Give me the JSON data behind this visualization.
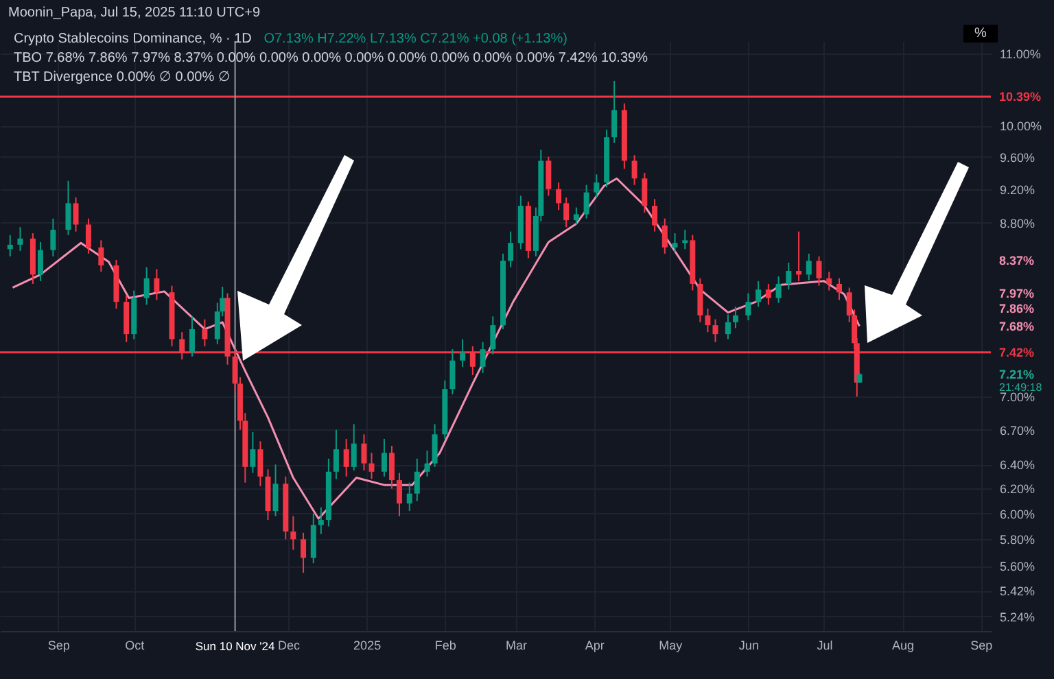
{
  "chart_data": {
    "type": "candlestick",
    "title": "Crypto Stablecoins Dominance, % · 1D",
    "subtitle": "O7.13% H7.22% L7.13% C7.21% +0.08 (+1.13%)",
    "ylabel": "%",
    "x": [
      "2024-08-13",
      "2024-08-17",
      "2024-08-22",
      "2024-08-25",
      "2024-08-30",
      "2024-09-05",
      "2024-09-08",
      "2024-09-13",
      "2024-09-18",
      "2024-09-24",
      "2024-09-28",
      "2024-10-01",
      "2024-10-06",
      "2024-10-10",
      "2024-10-16",
      "2024-10-20",
      "2024-10-24",
      "2024-10-29",
      "2024-11-03",
      "2024-11-05",
      "2024-11-07",
      "2024-11-10",
      "2024-11-12",
      "2024-11-14",
      "2024-11-17",
      "2024-11-20",
      "2024-11-23",
      "2024-11-26",
      "2024-11-30",
      "2024-12-03",
      "2024-12-07",
      "2024-12-11",
      "2024-12-14",
      "2024-12-17",
      "2024-12-20",
      "2024-12-24",
      "2024-12-27",
      "2024-12-31",
      "2025-01-03",
      "2025-01-08",
      "2025-01-11",
      "2025-01-14",
      "2025-01-18",
      "2025-01-21",
      "2025-01-25",
      "2025-01-28",
      "2025-02-01",
      "2025-02-04",
      "2025-02-08",
      "2025-02-12",
      "2025-02-16",
      "2025-02-20",
      "2025-02-24",
      "2025-02-27",
      "2025-03-03",
      "2025-03-06",
      "2025-03-09",
      "2025-03-11",
      "2025-03-14",
      "2025-03-18",
      "2025-03-21",
      "2025-03-25",
      "2025-03-29",
      "2025-04-02",
      "2025-04-06",
      "2025-04-09",
      "2025-04-13",
      "2025-04-17",
      "2025-04-21",
      "2025-04-25",
      "2025-04-29",
      "2025-05-03",
      "2025-05-07",
      "2025-05-10",
      "2025-05-13",
      "2025-05-16",
      "2025-05-19",
      "2025-05-24",
      "2025-05-27",
      "2025-06-01",
      "2025-06-05",
      "2025-06-09",
      "2025-06-13",
      "2025-06-17",
      "2025-06-21",
      "2025-06-25",
      "2025-06-29",
      "2025-07-03",
      "2025-07-07",
      "2025-07-11",
      "2025-07-13",
      "2025-07-14",
      "2025-07-15"
    ],
    "ohlc": [
      [
        8.5,
        8.66,
        8.42,
        8.55
      ],
      [
        8.55,
        8.75,
        8.48,
        8.62
      ],
      [
        8.62,
        8.68,
        8.12,
        8.22
      ],
      [
        8.22,
        8.58,
        8.15,
        8.49
      ],
      [
        8.49,
        8.85,
        8.42,
        8.72
      ],
      [
        8.72,
        9.3,
        8.66,
        9.03
      ],
      [
        9.03,
        9.1,
        8.7,
        8.78
      ],
      [
        8.78,
        8.85,
        8.45,
        8.52
      ],
      [
        8.52,
        8.6,
        8.25,
        8.32
      ],
      [
        8.32,
        8.38,
        7.86,
        7.93
      ],
      [
        7.93,
        8.0,
        7.52,
        7.6
      ],
      [
        7.6,
        8.05,
        7.55,
        7.97
      ],
      [
        7.97,
        8.3,
        7.9,
        8.18
      ],
      [
        8.18,
        8.28,
        7.95,
        8.03
      ],
      [
        8.03,
        8.1,
        7.48,
        7.55
      ],
      [
        7.55,
        7.62,
        7.35,
        7.42
      ],
      [
        7.42,
        7.78,
        7.38,
        7.65
      ],
      [
        7.65,
        7.75,
        7.48,
        7.55
      ],
      [
        7.55,
        7.92,
        7.5,
        7.83
      ],
      [
        7.83,
        8.09,
        7.78,
        7.97
      ],
      [
        7.97,
        8.02,
        7.3,
        7.38
      ],
      [
        7.38,
        7.45,
        7.05,
        7.12
      ],
      [
        7.12,
        7.18,
        6.7,
        6.78
      ],
      [
        6.78,
        6.85,
        6.25,
        6.38
      ],
      [
        6.38,
        6.68,
        6.33,
        6.53
      ],
      [
        6.53,
        6.6,
        6.22,
        6.3
      ],
      [
        6.3,
        6.36,
        5.95,
        6.02
      ],
      [
        6.02,
        6.4,
        5.98,
        6.24
      ],
      [
        6.24,
        6.3,
        5.8,
        5.86
      ],
      [
        5.86,
        5.98,
        5.72,
        5.8
      ],
      [
        5.8,
        5.85,
        5.55,
        5.66
      ],
      [
        5.66,
        6.0,
        5.62,
        5.91
      ],
      [
        5.91,
        6.05,
        5.84,
        5.95
      ],
      [
        5.95,
        6.45,
        5.9,
        6.34
      ],
      [
        6.34,
        6.7,
        6.28,
        6.53
      ],
      [
        6.53,
        6.62,
        6.3,
        6.38
      ],
      [
        6.38,
        6.75,
        6.35,
        6.58
      ],
      [
        6.58,
        6.66,
        6.35,
        6.41
      ],
      [
        6.41,
        6.5,
        6.28,
        6.34
      ],
      [
        6.34,
        6.62,
        6.3,
        6.5
      ],
      [
        6.5,
        6.56,
        6.2,
        6.27
      ],
      [
        6.27,
        6.33,
        5.98,
        6.08
      ],
      [
        6.08,
        6.25,
        6.02,
        6.16
      ],
      [
        6.16,
        6.45,
        6.1,
        6.34
      ],
      [
        6.34,
        6.52,
        6.3,
        6.41
      ],
      [
        6.41,
        6.75,
        6.38,
        6.66
      ],
      [
        6.66,
        7.15,
        6.62,
        7.07
      ],
      [
        7.07,
        7.45,
        7.02,
        7.34
      ],
      [
        7.34,
        7.55,
        7.28,
        7.42
      ],
      [
        7.42,
        7.48,
        7.2,
        7.28
      ],
      [
        7.28,
        7.52,
        7.22,
        7.45
      ],
      [
        7.45,
        7.78,
        7.4,
        7.69
      ],
      [
        7.69,
        8.45,
        7.65,
        8.37
      ],
      [
        8.37,
        8.7,
        8.3,
        8.57
      ],
      [
        8.57,
        9.12,
        8.5,
        9.0
      ],
      [
        9.0,
        9.05,
        8.4,
        8.48
      ],
      [
        8.48,
        8.98,
        8.42,
        8.88
      ],
      [
        8.88,
        9.69,
        8.82,
        9.55
      ],
      [
        9.55,
        9.6,
        9.12,
        9.2
      ],
      [
        9.2,
        9.28,
        8.95,
        9.03
      ],
      [
        9.03,
        9.1,
        8.75,
        8.83
      ],
      [
        8.83,
        8.98,
        8.78,
        8.9
      ],
      [
        8.9,
        9.25,
        8.85,
        9.16
      ],
      [
        9.16,
        9.38,
        9.1,
        9.28
      ],
      [
        9.28,
        9.95,
        9.22,
        9.85
      ],
      [
        9.85,
        10.61,
        9.78,
        10.21
      ],
      [
        10.21,
        10.3,
        9.45,
        9.55
      ],
      [
        9.55,
        9.62,
        9.25,
        9.33
      ],
      [
        9.33,
        9.4,
        8.92,
        9.0
      ],
      [
        9.0,
        9.08,
        8.7,
        8.77
      ],
      [
        8.77,
        8.85,
        8.45,
        8.52
      ],
      [
        8.52,
        8.68,
        8.47,
        8.57
      ],
      [
        8.57,
        8.72,
        8.5,
        8.6
      ],
      [
        8.6,
        8.66,
        8.05,
        8.12
      ],
      [
        8.12,
        8.18,
        7.72,
        7.79
      ],
      [
        7.79,
        7.86,
        7.62,
        7.69
      ],
      [
        7.69,
        7.75,
        7.52,
        7.6
      ],
      [
        7.6,
        7.8,
        7.55,
        7.72
      ],
      [
        7.72,
        7.88,
        7.66,
        7.79
      ],
      [
        7.79,
        8.02,
        7.74,
        7.93
      ],
      [
        7.93,
        8.15,
        7.88,
        8.06
      ],
      [
        8.06,
        8.12,
        7.9,
        7.97
      ],
      [
        7.97,
        8.2,
        7.92,
        8.12
      ],
      [
        8.12,
        8.35,
        8.06,
        8.26
      ],
      [
        8.26,
        8.7,
        8.15,
        8.22
      ],
      [
        8.22,
        8.45,
        8.16,
        8.37
      ],
      [
        8.37,
        8.42,
        8.1,
        8.18
      ],
      [
        8.18,
        8.25,
        8.05,
        8.12
      ],
      [
        8.12,
        8.18,
        7.95,
        8.03
      ],
      [
        8.03,
        8.08,
        7.72,
        7.79
      ],
      [
        7.79,
        7.85,
        7.45,
        7.51
      ],
      [
        7.51,
        7.56,
        7.0,
        7.13
      ],
      [
        7.13,
        7.22,
        7.13,
        7.21
      ]
    ],
    "colors": [
      "#089981",
      "#089981",
      "#f23645",
      "#089981",
      "#089981",
      "#089981",
      "#f23645",
      "#f23645",
      "#f23645",
      "#f23645",
      "#f23645",
      "#089981",
      "#089981",
      "#f23645",
      "#f23645",
      "#f23645",
      "#089981",
      "#f23645",
      "#089981",
      "#089981",
      "#f23645",
      "#f23645",
      "#f23645",
      "#f23645",
      "#089981",
      "#f23645",
      "#f23645",
      "#089981",
      "#f23645",
      "#f23645",
      "#f23645",
      "#089981",
      "#089981",
      "#089981",
      "#089981",
      "#f23645",
      "#089981",
      "#f23645",
      "#f23645",
      "#089981",
      "#f23645",
      "#f23645",
      "#089981",
      "#089981",
      "#089981",
      "#089981",
      "#089981",
      "#089981",
      "#089981",
      "#f23645",
      "#089981",
      "#089981",
      "#089981",
      "#089981",
      "#089981",
      "#f23645",
      "#089981",
      "#089981",
      "#f23645",
      "#f23645",
      "#f23645",
      "#089981",
      "#089981",
      "#089981",
      "#089981",
      "#089981",
      "#f23645",
      "#f23645",
      "#f23645",
      "#f23645",
      "#f23645",
      "#089981",
      "#089981",
      "#f23645",
      "#f23645",
      "#f23645",
      "#f23645",
      "#089981",
      "#089981",
      "#089981",
      "#089981",
      "#f23645",
      "#089981",
      "#089981",
      "#f23645",
      "#089981",
      "#f23645",
      "#f23645",
      "#f23645",
      "#f23645",
      "#f23645",
      "#f23645",
      "#089981"
    ],
    "series": [
      {
        "type": "line",
        "color": "#f48fb1",
        "x": [
          "2024-08-14",
          "2024-08-25",
          "2024-09-10",
          "2024-09-21",
          "2024-09-29",
          "2024-10-13",
          "2024-10-29",
          "2024-11-05",
          "2024-11-14",
          "2024-11-23",
          "2024-12-03",
          "2024-12-13",
          "2024-12-28",
          "2025-01-08",
          "2025-01-19",
          "2025-01-30",
          "2025-02-12",
          "2025-02-28",
          "2025-03-14",
          "2025-03-25",
          "2025-04-05",
          "2025-04-10",
          "2025-04-21",
          "2025-05-02",
          "2025-05-13",
          "2025-05-24",
          "2025-06-04",
          "2025-06-14",
          "2025-07-01",
          "2025-07-09",
          "2025-07-15"
        ],
        "values": [
          8.08,
          8.22,
          8.57,
          8.36,
          7.97,
          8.04,
          7.65,
          7.72,
          7.24,
          6.81,
          6.29,
          5.96,
          6.29,
          6.23,
          6.23,
          6.5,
          7.12,
          7.93,
          8.58,
          8.79,
          9.24,
          9.33,
          9.0,
          8.52,
          8.06,
          7.82,
          7.93,
          8.11,
          8.15,
          8.01,
          7.68
        ]
      }
    ],
    "xlim": [
      "2024-08-09",
      "2025-09-05"
    ],
    "xticks": [
      {
        "value": "2024-09-01",
        "label": "Sep"
      },
      {
        "value": "2024-10-01",
        "label": "Oct"
      },
      {
        "value": "2024-12-01",
        "label": "Dec"
      },
      {
        "value": "2025-01-01",
        "label": "2025"
      },
      {
        "value": "2025-02-01",
        "label": "Feb"
      },
      {
        "value": "2025-03-01",
        "label": "Mar"
      },
      {
        "value": "2025-04-01",
        "label": "Apr"
      },
      {
        "value": "2025-05-01",
        "label": "May"
      },
      {
        "value": "2025-06-01",
        "label": "Jun"
      },
      {
        "value": "2025-07-01",
        "label": "Jul"
      },
      {
        "value": "2025-08-01",
        "label": "Aug"
      },
      {
        "value": "2025-09-01",
        "label": "Sep"
      }
    ],
    "ylim": [
      5.14,
      11.18
    ],
    "log": "y",
    "yticks": [
      {
        "value": 11,
        "label": "11.00%"
      },
      {
        "value": 10,
        "label": "10.00%"
      },
      {
        "value": 9.6,
        "label": "9.60%"
      },
      {
        "value": 9.2,
        "label": "9.20%"
      },
      {
        "value": 8.8,
        "label": "8.80%"
      },
      {
        "value": 7,
        "label": "7.00%"
      },
      {
        "value": 6.7,
        "label": "6.70%"
      },
      {
        "value": 6.4,
        "label": "6.40%"
      },
      {
        "value": 6.2,
        "label": "6.20%"
      },
      {
        "value": 6,
        "label": "6.00%"
      },
      {
        "value": 5.8,
        "label": "5.80%"
      },
      {
        "value": 5.6,
        "label": "5.60%"
      },
      {
        "value": 5.42,
        "label": "5.42%"
      },
      {
        "value": 5.24,
        "label": "5.24%"
      }
    ],
    "grid": true,
    "ref_lines": [
      {
        "axis": "y",
        "value": 10.39,
        "label": "10.39%",
        "color": "#f23645"
      },
      {
        "axis": "y",
        "value": 7.42,
        "label": "7.42%",
        "color": "#f23645"
      },
      {
        "axis": "x",
        "value": "2024-11-10",
        "label": "Sun 10 Nov '24",
        "color": "#9598a1"
      }
    ],
    "annotations": [
      "Moonin_Papa, Jul 15, 2025 11:10 UTC+9",
      "TBO 7.68% 7.86% 7.97% 8.37% 0.00% 0.00% 0.00% 0.00% 0.00% 0.00% 0.00% 0.00% 7.42% 10.39%",
      "TBT Divergence 0.00% ∅ 0.00% ∅",
      "8.37%",
      "7.97%",
      "7.86%",
      "7.68%",
      "7.21%",
      "21:49:18"
    ]
  }
}
